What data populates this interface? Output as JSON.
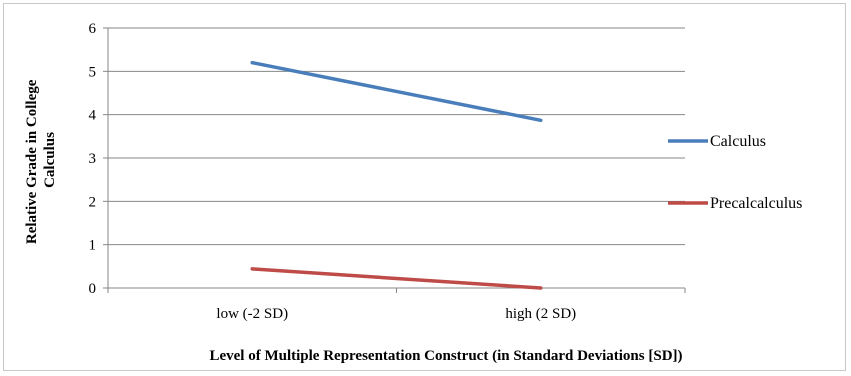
{
  "chart_data": {
    "type": "line",
    "title": "",
    "xlabel": "Level of Multiple Representation Construct (in Standard Deviations [SD])",
    "ylabel_lines": [
      "Relative Grade in College",
      "Calculus"
    ],
    "categories": [
      "low (-2 SD)",
      "high (2 SD)"
    ],
    "ylim": [
      0,
      6
    ],
    "yticks": [
      "0",
      "1",
      "2",
      "3",
      "4",
      "5",
      "6"
    ],
    "grid": true,
    "legend_position": "right",
    "series": [
      {
        "name": "Calculus",
        "values": [
          5.2,
          3.87
        ],
        "color": "#4a7ebb"
      },
      {
        "name": "Precalcalculus",
        "values": [
          0.44,
          0.0
        ],
        "color": "#be4b48"
      }
    ]
  }
}
